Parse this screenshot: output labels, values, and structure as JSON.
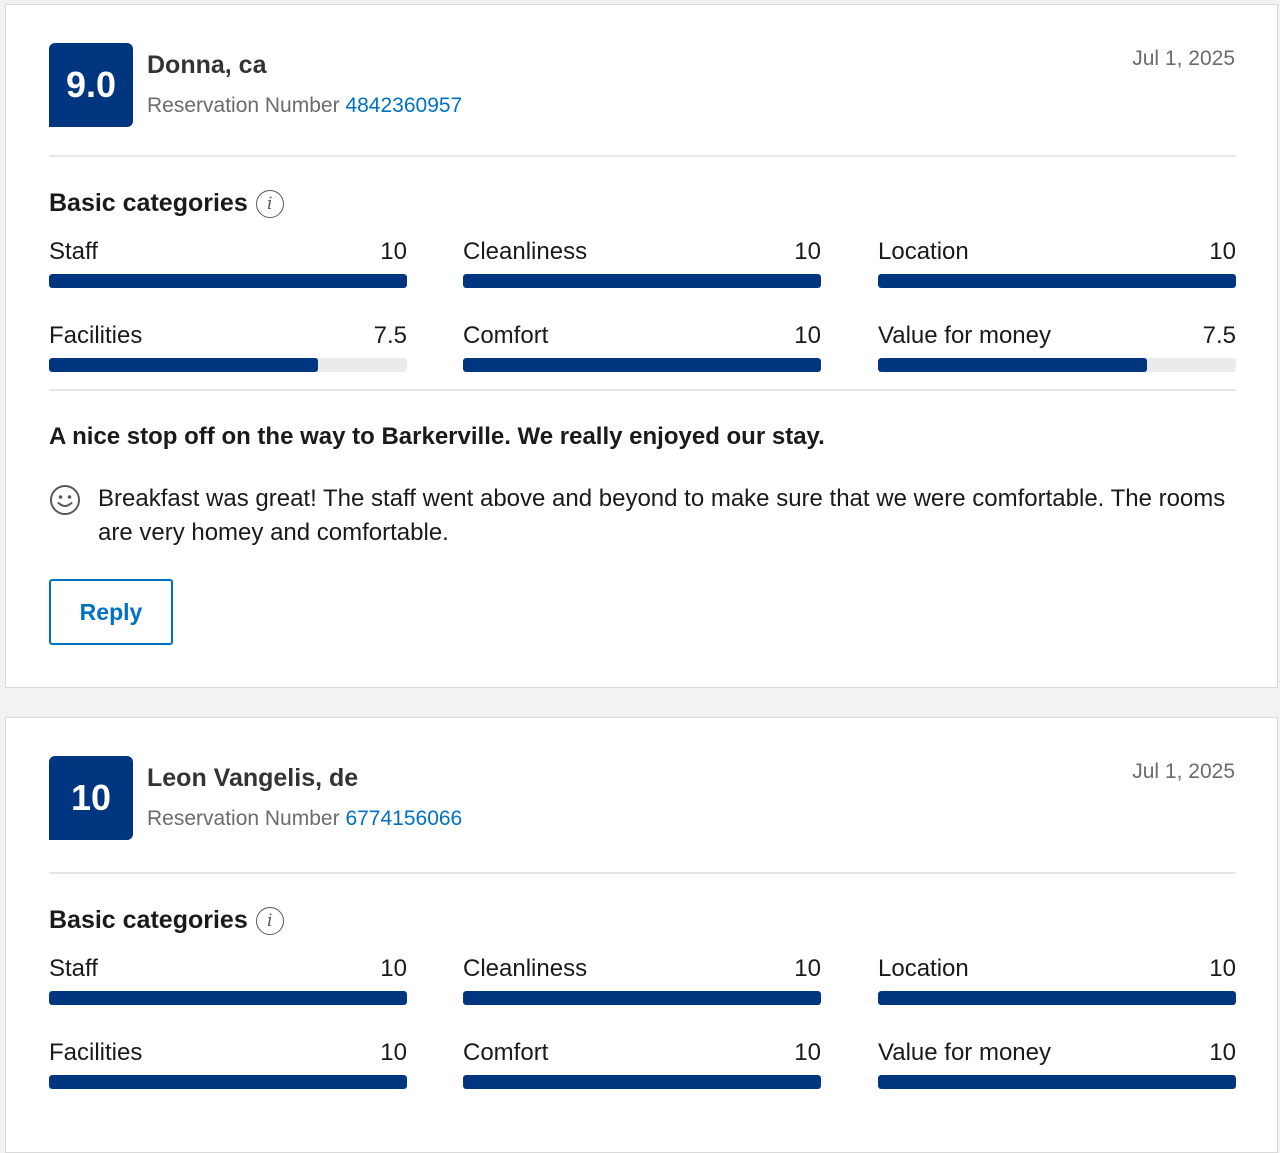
{
  "colors": {
    "brand": "#003580",
    "link": "#0071c2",
    "track": "#ebebeb"
  },
  "reviews": [
    {
      "score": "9.0",
      "guest": "Donna, ca",
      "reservation_label": "Reservation Number",
      "reservation_number": "4842360957",
      "date": "Jul 1, 2025",
      "categories_title": "Basic categories",
      "categories": [
        {
          "label": "Staff",
          "value": "10",
          "max": 10
        },
        {
          "label": "Cleanliness",
          "value": "10",
          "max": 10
        },
        {
          "label": "Location",
          "value": "10",
          "max": 10
        },
        {
          "label": "Facilities",
          "value": "7.5",
          "max": 10
        },
        {
          "label": "Comfort",
          "value": "10",
          "max": 10
        },
        {
          "label": "Value for money",
          "value": "7.5",
          "max": 10
        }
      ],
      "title": "A nice stop off on the way to Barkerville. We really enjoyed our stay.",
      "positive_icon": "smile-icon",
      "positive": "Breakfast was great! The staff went above and beyond to make sure that we were comfortable. The rooms are very homey and comfortable.",
      "reply_label": "Reply"
    },
    {
      "score": "10",
      "guest": "Leon Vangelis, de",
      "reservation_label": "Reservation Number",
      "reservation_number": "6774156066",
      "date": "Jul 1, 2025",
      "categories_title": "Basic categories",
      "categories": [
        {
          "label": "Staff",
          "value": "10",
          "max": 10
        },
        {
          "label": "Cleanliness",
          "value": "10",
          "max": 10
        },
        {
          "label": "Location",
          "value": "10",
          "max": 10
        },
        {
          "label": "Facilities",
          "value": "10",
          "max": 10
        },
        {
          "label": "Comfort",
          "value": "10",
          "max": 10
        },
        {
          "label": "Value for money",
          "value": "10",
          "max": 10
        }
      ]
    }
  ]
}
